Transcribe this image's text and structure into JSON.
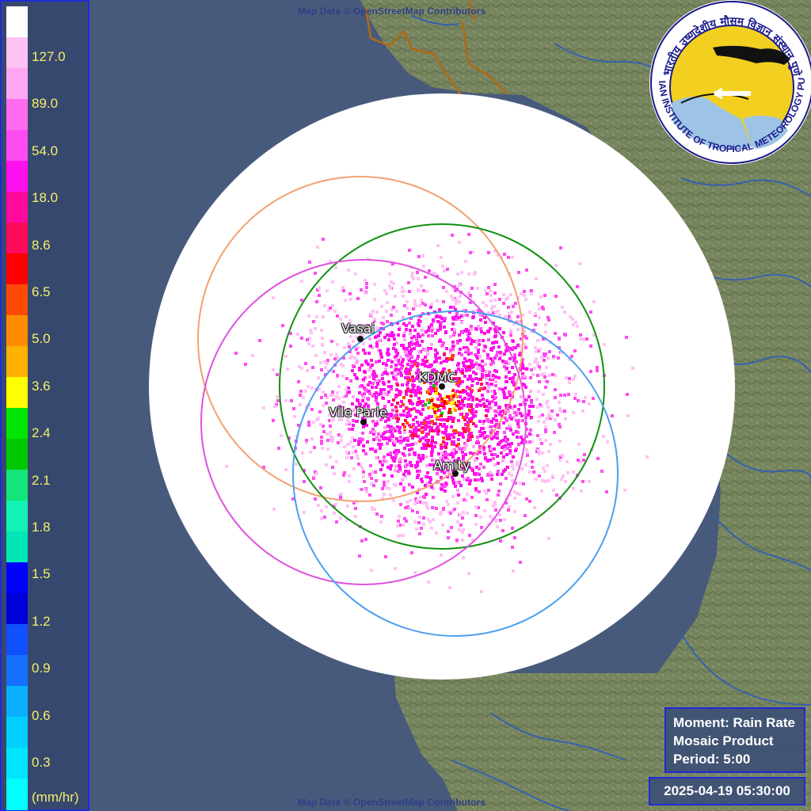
{
  "attribution": "Map Data © OpenStreetMap Contributors",
  "legend": {
    "unit": "(mm/hr)",
    "labels": [
      "127.0",
      "89.0",
      "54.0",
      "18.0",
      "8.6",
      "6.5",
      "5.0",
      "3.6",
      "2.4",
      "2.1",
      "1.8",
      "1.5",
      "1.2",
      "0.9",
      "0.6",
      "0.3"
    ],
    "colors_top_to_bottom": [
      "#ffffff",
      "#ffc2f4",
      "#ffa6f2",
      "#ff6cf0",
      "#ff4cf0",
      "#ff10ee",
      "#ff0a9c",
      "#ff0a5a",
      "#ff0000",
      "#ff4a06",
      "#ff8c00",
      "#ffb000",
      "#ffff00",
      "#00e600",
      "#00c800",
      "#14e67a",
      "#12f2b4",
      "#00e6b8",
      "#0000ff",
      "#0000d8",
      "#1050ff",
      "#1670ff",
      "#08b0ff",
      "#00cfff",
      "#00e5ff",
      "#00ffff"
    ]
  },
  "info": {
    "moment": "Moment: Rain Rate",
    "product": "Mosaic Product",
    "period": "Period: 5:00"
  },
  "timestamp": "2025-04-19 05:30:00",
  "logo": {
    "text_hindi": "भारतीय उष्णदेशीय मौसम विज्ञान संस्थान पुणे",
    "text_english": "INDIAN INSTITUTE OF TROPICAL METEOROLOGY PUNE"
  },
  "stations": [
    "Vasai",
    "KDMC",
    "Vile Parle",
    "Amity"
  ],
  "colors": {
    "sea": "#485a7c",
    "coverage": "#ffffff",
    "ring_vasai": "#f2a070",
    "ring_kdmc": "#109010",
    "ring_vileparle": "#e050e0",
    "ring_amity": "#4aa0ef",
    "legend_border": "#1e2bd6"
  }
}
